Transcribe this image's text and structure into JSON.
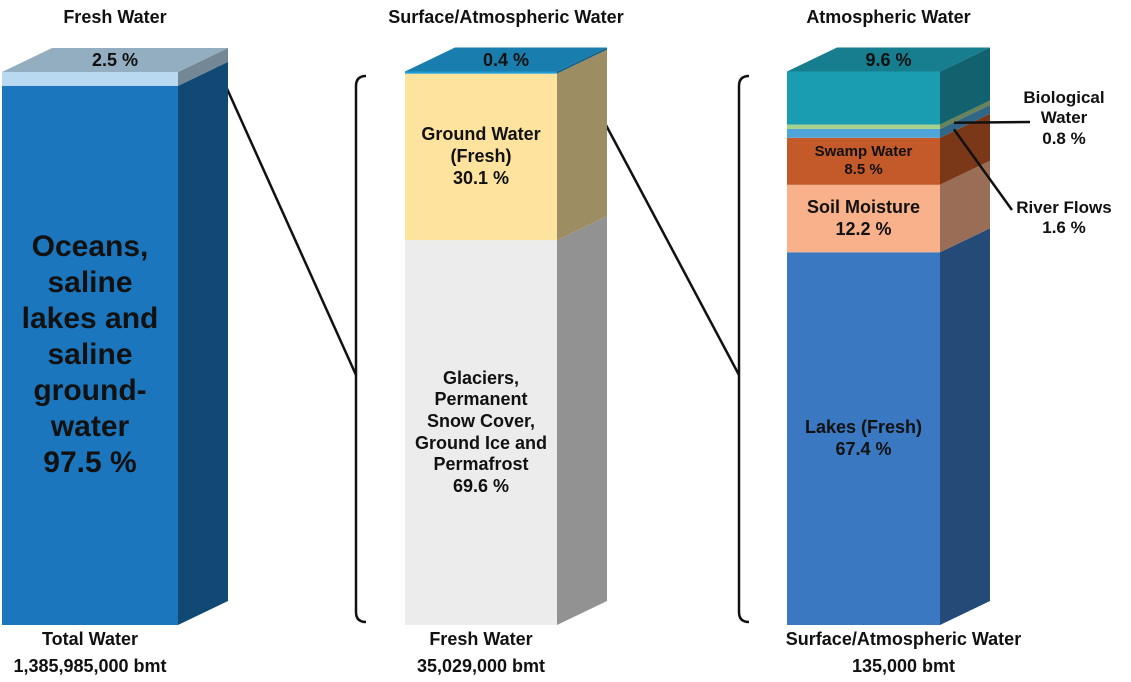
{
  "chart_data": [
    {
      "type": "bar",
      "categories": [
        "Total Water"
      ],
      "annotations": [
        "1,385,985,000 bmt"
      ],
      "ylim": [
        0,
        100
      ],
      "series": [
        {
          "name": "Oceans, saline lakes and saline ground-water",
          "color": "#1b76bd",
          "values": [
            97.5
          ],
          "value_labels": [
            "97.5 %"
          ]
        },
        {
          "name": "Fresh Water",
          "color": "#b9d9f1",
          "values": [
            2.5
          ],
          "value_labels": [
            "2.5 %"
          ]
        }
      ]
    },
    {
      "type": "bar",
      "categories": [
        "Fresh Water"
      ],
      "annotations": [
        "35,029,000 bmt"
      ],
      "ylim": [
        0,
        100
      ],
      "series": [
        {
          "name": "Glaciers, Permanent Snow Cover, Ground Ice and Permafrost",
          "color": "#ececec",
          "values": [
            69.6
          ],
          "value_labels": [
            "69.6 %"
          ]
        },
        {
          "name": "Ground Water (Fresh)",
          "color": "#fde39e",
          "values": [
            30.1
          ],
          "value_labels": [
            "30.1 %"
          ]
        },
        {
          "name": "Surface/Atmospheric Water",
          "color": "#1f9dd8",
          "values": [
            0.4
          ],
          "value_labels": [
            "0.4 %"
          ]
        }
      ]
    },
    {
      "type": "bar",
      "categories": [
        "Surface/Atmospheric Water"
      ],
      "annotations": [
        "135,000 bmt"
      ],
      "ylim": [
        0,
        100
      ],
      "series": [
        {
          "name": "Lakes (Fresh)",
          "color": "#3a78c2",
          "values": [
            67.4
          ],
          "value_labels": [
            "67.4 %"
          ]
        },
        {
          "name": "Soil Moisture",
          "color": "#f8b18b",
          "values": [
            12.2
          ],
          "value_labels": [
            "12.2 %"
          ]
        },
        {
          "name": "Swamp Water",
          "color": "#c45a29",
          "values": [
            8.5
          ],
          "value_labels": [
            "8.5 %"
          ]
        },
        {
          "name": "River Flows",
          "color": "#4fa4da",
          "values": [
            1.6
          ],
          "value_labels": [
            "1.6 %"
          ]
        },
        {
          "name": "Biological Water",
          "color": "#a9d18e",
          "values": [
            0.8
          ],
          "value_labels": [
            "0.8 %"
          ]
        },
        {
          "name": "Atmospheric Water",
          "color": "#1b9db1",
          "values": [
            9.6
          ],
          "value_labels": [
            "9.6 %"
          ]
        }
      ]
    }
  ]
}
